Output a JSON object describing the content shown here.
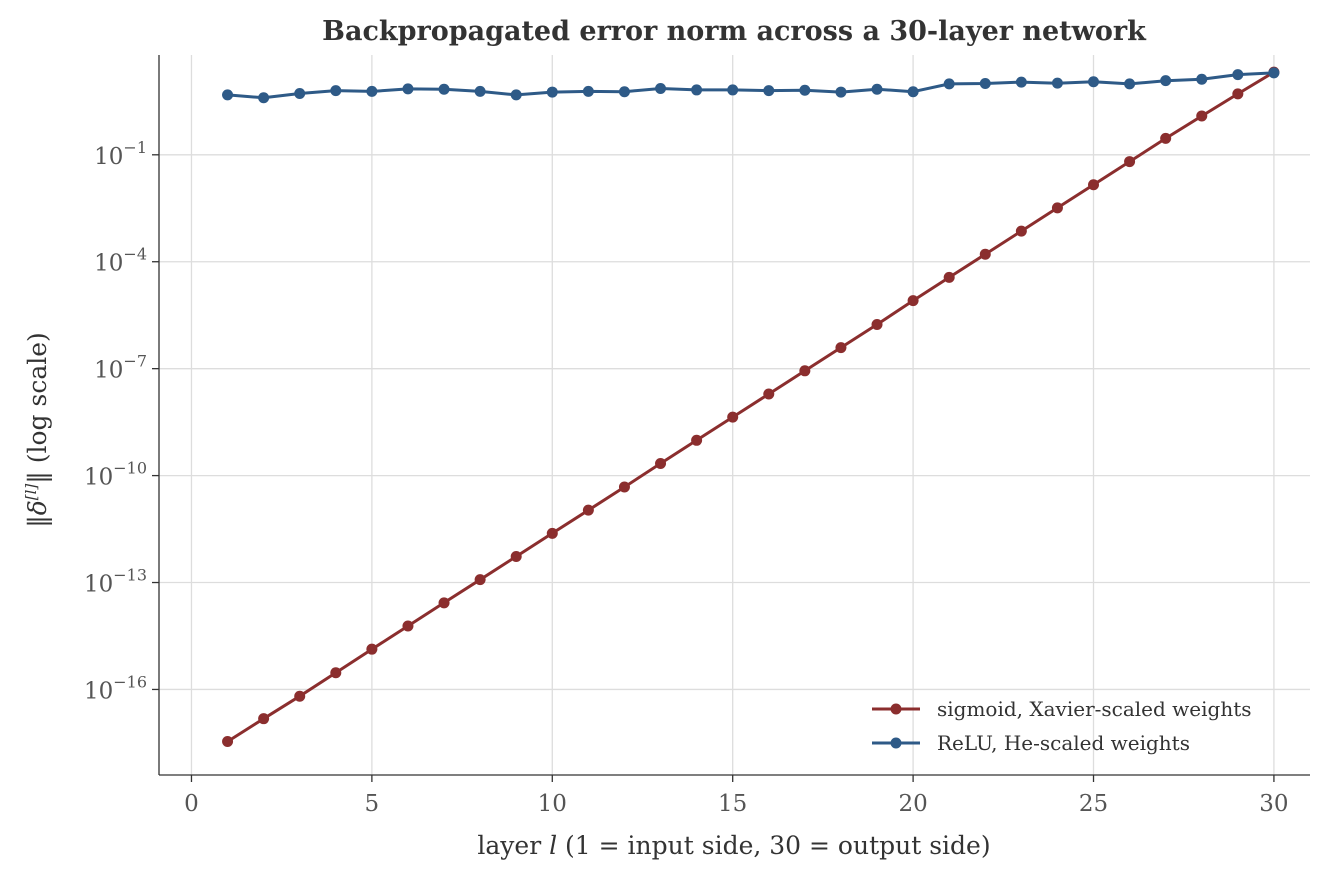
{
  "chart_data": {
    "type": "line",
    "title": "Backpropagated error norm across a 30-layer network",
    "xlabel_parts": [
      "layer ",
      "l",
      " (1 = input side, 30 = output side)"
    ],
    "ylabel_parts": [
      "‖δ",
      "[l]",
      "‖ (log scale)"
    ],
    "x_ticks": [
      "0",
      "5",
      "10",
      "15",
      "20",
      "25",
      "30"
    ],
    "y_tick_mantissa": "10",
    "y_tick_exponents": [
      "−1",
      "−4",
      "−7",
      "−10",
      "−13",
      "−16"
    ],
    "xlim": [
      -0.9,
      31.0
    ],
    "ylim_log10": [
      -18.4,
      1.8
    ],
    "y_scale": "log",
    "grid": true,
    "legend_position": "lower-right",
    "x": [
      1,
      2,
      3,
      4,
      5,
      6,
      7,
      8,
      9,
      10,
      11,
      12,
      13,
      14,
      15,
      16,
      17,
      18,
      19,
      20,
      21,
      22,
      23,
      24,
      25,
      26,
      27,
      28,
      29,
      30
    ],
    "series": [
      {
        "name": "sigmoid, Xavier-scaled weights",
        "color": "#8b2e2e",
        "log10_values": [
          -17.46,
          -16.82,
          -16.19,
          -15.53,
          -14.87,
          -14.22,
          -13.57,
          -12.92,
          -12.27,
          -11.62,
          -10.97,
          -10.32,
          -9.66,
          -9.01,
          -8.36,
          -7.71,
          -7.06,
          -6.41,
          -5.76,
          -5.09,
          -4.44,
          -3.79,
          -3.14,
          -2.49,
          -1.84,
          -1.19,
          -0.54,
          0.09,
          0.71,
          1.32
        ]
      },
      {
        "name": "ReLU, He-scaled weights",
        "color": "#2e5a87",
        "log10_values": [
          0.68,
          0.6,
          0.72,
          0.8,
          0.78,
          0.85,
          0.84,
          0.78,
          0.68,
          0.76,
          0.78,
          0.77,
          0.86,
          0.82,
          0.82,
          0.8,
          0.81,
          0.76,
          0.84,
          0.77,
          0.99,
          1.0,
          1.04,
          1.01,
          1.05,
          0.99,
          1.08,
          1.12,
          1.25,
          1.3
        ]
      }
    ]
  }
}
